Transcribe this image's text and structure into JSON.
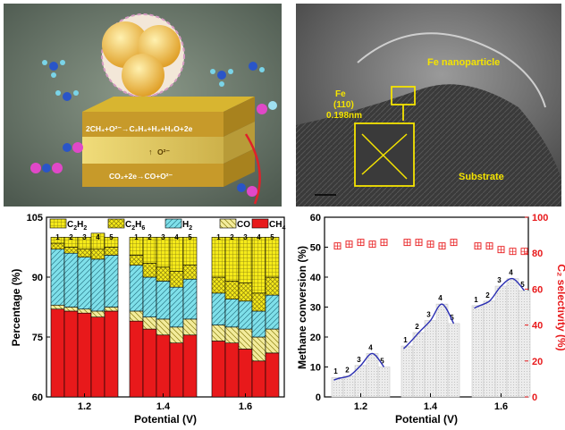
{
  "panel_a": {
    "equation_top": "2CH₄+O²⁻→C₂H₄+H₂+H₂O+2e",
    "ion_label": "O²⁻",
    "equation_bottom": "CO₂+2e→CO+O²⁻"
  },
  "panel_b": {
    "particle_label": "Fe nanoparticle",
    "plane_label_lines": [
      "Fe",
      "(110)",
      "0.198nm"
    ],
    "substrate_label": "Substrate"
  },
  "chart_data": [
    {
      "type": "bar",
      "stacked": true,
      "groups": [
        "1.2",
        "1.4",
        "1.6"
      ],
      "bar_numbers": [
        "1",
        "2",
        "3",
        "4",
        "5"
      ],
      "xlabel": "Potential (V)",
      "ylabel": "Percentage (%)",
      "ylim": [
        60,
        105
      ],
      "yticks": [
        "60",
        "75",
        "90",
        "105"
      ],
      "legend": {
        "placement": "top",
        "entries": [
          {
            "key": "c2h2",
            "sym": "C",
            "sub": "2",
            "sym2": "H",
            "sub2": "2"
          },
          {
            "key": "c2h6",
            "sym": "C",
            "sub": "2",
            "sym2": "H",
            "sub2": "6"
          },
          {
            "key": "h2",
            "sym": "H",
            "sub": "2",
            "sym2": "",
            "sub2": ""
          },
          {
            "key": "co",
            "sym": "CO",
            "sub": "",
            "sym2": "",
            "sub2": ""
          },
          {
            "key": "ch4",
            "sym": "CH",
            "sub": "4",
            "sym2": "",
            "sub2": ""
          }
        ]
      },
      "colors": {
        "ch4": "#e8191b",
        "co": "#f3ec9c",
        "h2": "#7fe0ea",
        "c2h6": "#f5ea1a",
        "c2h2": "#f5ea1a"
      },
      "series": [
        {
          "key": "ch4",
          "values": [
            [
              82,
              81.5,
              81,
              80,
              81.5
            ],
            [
              79,
              77,
              75.5,
              73.5,
              75.5
            ],
            [
              74,
              73.5,
              72,
              69,
              71
            ]
          ]
        },
        {
          "key": "co",
          "values": [
            [
              1,
              1,
              1,
              1.5,
              1
            ],
            [
              2.5,
              3,
              4,
              4,
              4
            ],
            [
              4,
              4,
              5,
              6,
              6
            ]
          ]
        },
        {
          "key": "h2",
          "values": [
            [
              14,
              13.5,
              13,
              13,
              13
            ],
            [
              11.5,
              10,
              9.5,
              10,
              10
            ],
            [
              8,
              7,
              7,
              6.5,
              8.5
            ]
          ]
        },
        {
          "key": "c2h6",
          "values": [
            [
              1.5,
              1.5,
              2,
              2.5,
              2
            ],
            [
              2.5,
              3.5,
              3.5,
              4,
              3.5
            ],
            [
              4,
              4.5,
              4.5,
              4.5,
              4.5
            ]
          ]
        },
        {
          "key": "c2h2",
          "values": [
            [
              1.5,
              2.5,
              3,
              4,
              2.5
            ],
            [
              4.5,
              6.5,
              7.5,
              8.5,
              7
            ],
            [
              10,
              11,
              11.5,
              14,
              10
            ]
          ]
        }
      ]
    },
    {
      "type": "bar",
      "groups": [
        "1.2",
        "1.4",
        "1.6"
      ],
      "bar_numbers": [
        "1",
        "2",
        "3",
        "4",
        "5"
      ],
      "xlabel": "Potential (V)",
      "ylabel": "Methane conversion (%)",
      "ylim": [
        0,
        60
      ],
      "yticks": [
        "0",
        "10",
        "20",
        "30",
        "40",
        "50",
        "60"
      ],
      "conversion": [
        [
          6.5,
          7,
          10.5,
          14.5,
          10
        ],
        [
          17,
          21.5,
          25.5,
          31,
          24.5
        ],
        [
          30.5,
          32,
          37,
          39.5,
          35.5
        ]
      ],
      "y2label": "C₂ selectivity (%)",
      "y2lim": [
        0,
        100
      ],
      "y2ticks": [
        "0",
        "20",
        "40",
        "60",
        "80",
        "100"
      ],
      "selectivity": [
        [
          84,
          85,
          86,
          85,
          86
        ],
        [
          86,
          86,
          85,
          84,
          86
        ],
        [
          84,
          84,
          82,
          81,
          81
        ]
      ],
      "colors": {
        "right_axis": "#e8191b",
        "fit_line": "#2b2fb3",
        "bars": "#e4e4e4"
      }
    }
  ]
}
